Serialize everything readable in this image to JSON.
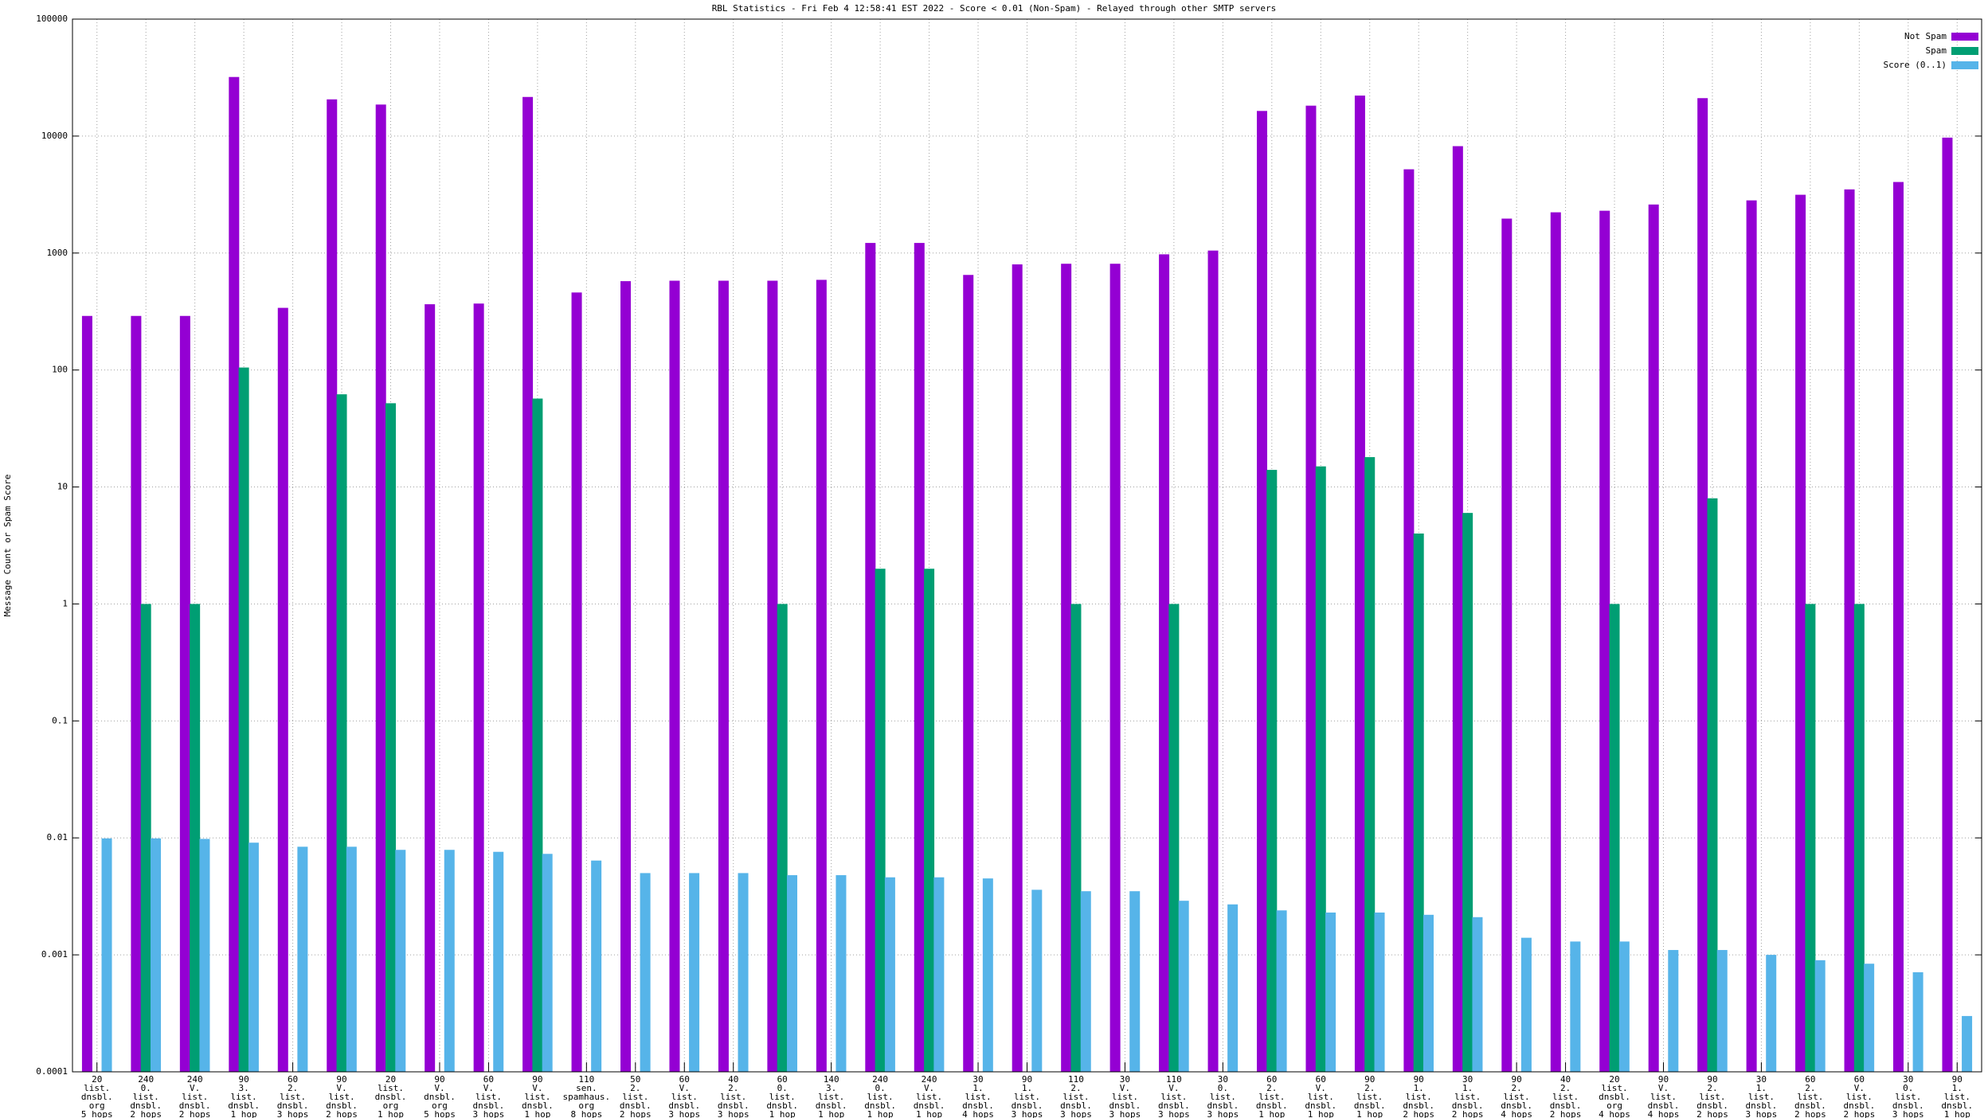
{
  "chart_data": {
    "type": "bar",
    "title": "RBL Statistics - Fri Feb  4 12:58:41 EST 2022 - Score < 0.01 (Non-Spam) - Relayed through other SMTP servers",
    "ylabel": "Message Count or Spam Score",
    "log_scale": true,
    "grid": true,
    "legend": "top-right",
    "categories": [
      [
        "20",
        "list.",
        "dnsbl.",
        "org",
        "5 hops"
      ],
      [
        "240",
        "0.",
        "list.",
        "dnsbl.",
        "2 hops"
      ],
      [
        "240",
        "V.",
        "list.",
        "dnsbl.",
        "2 hops"
      ],
      [
        "90",
        "3.",
        "list.",
        "dnsbl.",
        "1 hop"
      ],
      [
        "60",
        "2.",
        "list.",
        "dnsbl.",
        "3 hops"
      ],
      [
        "90",
        "V.",
        "list.",
        "dnsbl.",
        "2 hops"
      ],
      [
        "20",
        "list.",
        "dnsbl.",
        "org",
        "1 hop"
      ],
      [
        "90",
        "V.",
        "dnsbl.",
        "org",
        "5 hops"
      ],
      [
        "60",
        "V.",
        "list.",
        "dnsbl.",
        "3 hops"
      ],
      [
        "90",
        "V.",
        "list.",
        "dnsbl.",
        "1 hop"
      ],
      [
        "110",
        "sen.",
        "spamhaus.",
        "org",
        "8 hops"
      ],
      [
        "50",
        "2.",
        "list.",
        "dnsbl.",
        "2 hops"
      ],
      [
        "60",
        "V.",
        "list.",
        "dnsbl.",
        "3 hops"
      ],
      [
        "40",
        "2.",
        "list.",
        "dnsbl.",
        "3 hops"
      ],
      [
        "60",
        "0.",
        "list.",
        "dnsbl.",
        "1 hop"
      ],
      [
        "140",
        "3.",
        "list.",
        "dnsbl.",
        "1 hop"
      ],
      [
        "240",
        "0.",
        "list.",
        "dnsbl.",
        "1 hop"
      ],
      [
        "240",
        "V.",
        "list.",
        "dnsbl.",
        "1 hop"
      ],
      [
        "30",
        "1.",
        "list.",
        "dnsbl.",
        "4 hops"
      ],
      [
        "90",
        "1.",
        "list.",
        "dnsbl.",
        "3 hops"
      ],
      [
        "110",
        "2.",
        "list.",
        "dnsbl.",
        "3 hops"
      ],
      [
        "30",
        "V.",
        "list.",
        "dnsbl.",
        "3 hops"
      ],
      [
        "110",
        "V.",
        "list.",
        "dnsbl.",
        "3 hops"
      ],
      [
        "30",
        "0.",
        "list.",
        "dnsbl.",
        "3 hops"
      ],
      [
        "60",
        "2.",
        "list.",
        "dnsbl.",
        "1 hop"
      ],
      [
        "60",
        "V.",
        "list.",
        "dnsbl.",
        "1 hop"
      ],
      [
        "90",
        "2.",
        "list.",
        "dnsbl.",
        "1 hop"
      ],
      [
        "90",
        "1.",
        "list.",
        "dnsbl.",
        "2 hops"
      ],
      [
        "30",
        "1.",
        "list.",
        "dnsbl.",
        "2 hops"
      ],
      [
        "90",
        "2.",
        "list.",
        "dnsbl.",
        "4 hops"
      ],
      [
        "40",
        "2.",
        "list.",
        "dnsbl.",
        "2 hops"
      ],
      [
        "20",
        "list.",
        "dnsbl.",
        "org",
        "4 hops"
      ],
      [
        "90",
        "V.",
        "list.",
        "dnsbl.",
        "4 hops"
      ],
      [
        "90",
        "2.",
        "list.",
        "dnsbl.",
        "2 hops"
      ],
      [
        "30",
        "1.",
        "list.",
        "dnsbl.",
        "3 hops"
      ],
      [
        "60",
        "2.",
        "list.",
        "dnsbl.",
        "2 hops"
      ],
      [
        "60",
        "V.",
        "list.",
        "dnsbl.",
        "2 hops"
      ],
      [
        "30",
        "0.",
        "list.",
        "dnsbl.",
        "3 hops"
      ],
      [
        "90",
        "1.",
        "list.",
        "dnsbl.",
        "1 hop"
      ]
    ],
    "series": [
      {
        "name": "Not Spam",
        "color": "#9400d3",
        "values": [
          290,
          290,
          290,
          32000,
          340,
          20600,
          18600,
          365,
          370,
          21600,
          460,
          575,
          580,
          580,
          580,
          590,
          1220,
          1220,
          650,
          800,
          810,
          810,
          975,
          1050,
          16400,
          18200,
          22200,
          5200,
          8200,
          1970,
          2230,
          2300,
          2600,
          21100,
          2820,
          3150,
          3500,
          4050,
          9700
        ]
      },
      {
        "name": "Spam",
        "color": "#009e73",
        "values": [
          null,
          1,
          1,
          105,
          null,
          62,
          52,
          null,
          null,
          57,
          null,
          null,
          null,
          null,
          1,
          null,
          2,
          2,
          null,
          null,
          1,
          null,
          1,
          null,
          14,
          15,
          18,
          4,
          6,
          null,
          null,
          1,
          null,
          8,
          null,
          1,
          1,
          null,
          null
        ]
      },
      {
        "name": "Score (0..1)",
        "color": "#56b4e9",
        "values": [
          0.0099,
          0.0099,
          0.0098,
          0.0091,
          0.0084,
          0.0084,
          0.0079,
          0.0079,
          0.0076,
          0.0073,
          0.0064,
          0.005,
          0.005,
          0.005,
          0.0048,
          0.0048,
          0.0046,
          0.0046,
          0.0045,
          0.0036,
          0.0035,
          0.0035,
          0.0029,
          0.0027,
          0.0024,
          0.0023,
          0.0023,
          0.0022,
          0.0021,
          0.0014,
          0.0013,
          0.0013,
          0.0011,
          0.0011,
          0.001,
          0.0009,
          0.00084,
          0.00071,
          0.0003
        ]
      }
    ],
    "ylim": [
      0.0001,
      100000
    ],
    "yticks": [
      0.0001,
      0.001,
      0.01,
      0.1,
      1,
      10,
      100,
      1000,
      10000,
      100000
    ]
  }
}
